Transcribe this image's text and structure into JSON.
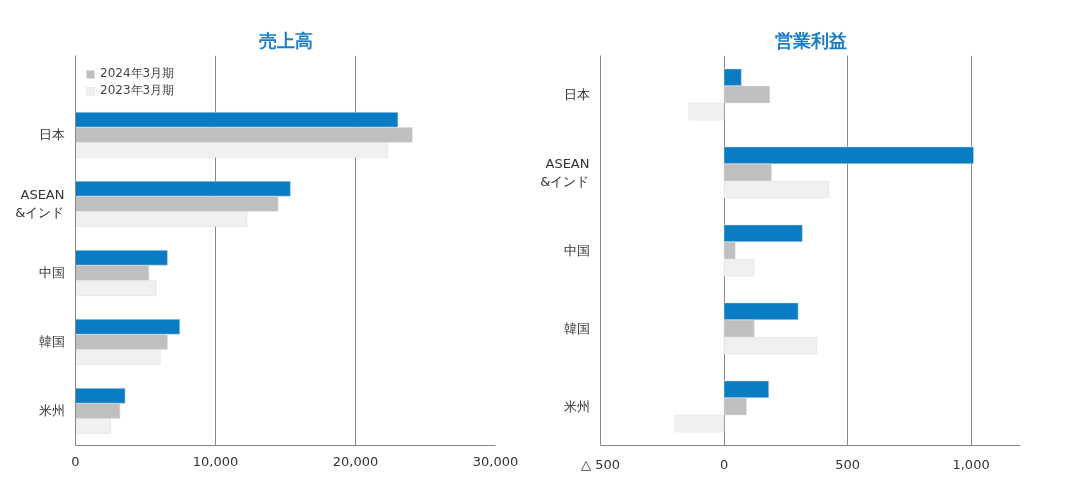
{
  "chart_data": [
    {
      "type": "bar",
      "orientation": "horizontal",
      "title": "売上高",
      "categories": [
        "日本",
        "ASEAN\n&インド",
        "中国",
        "韓国",
        "米州"
      ],
      "series": [
        {
          "color": "#0a7cc4",
          "values": [
            23030,
            15350,
            6570,
            7450,
            3540
          ]
        },
        {
          "name": "2024年3月期",
          "color": "#bfbfbf",
          "values": [
            24060,
            14470,
            5240,
            6570,
            3170
          ]
        },
        {
          "name": "2023年3月期",
          "color": "#f0f0f0",
          "values": [
            22290,
            12250,
            5760,
            6050,
            2510
          ]
        }
      ],
      "xlim": [
        0,
        30000
      ],
      "xticks": [
        0,
        {
          "value": 10000,
          "label": "10,000"
        },
        {
          "value": 20000,
          "label": "20,000"
        },
        {
          "value": 30000,
          "label": "30,000"
        }
      ],
      "grid": "x",
      "legend": "top left"
    },
    {
      "type": "bar",
      "orientation": "horizontal",
      "title": "営業利益",
      "categories": [
        "日本",
        "ASEAN\n&インド",
        "中国",
        "韓国",
        "米州"
      ],
      "series": [
        {
          "color": "#0a7cc4",
          "values": [
            70,
            1010,
            317,
            300,
            181
          ]
        },
        {
          "color": "#bfbfbf",
          "values": [
            185,
            192,
            45,
            122,
            91
          ]
        },
        {
          "color": "#f0f0f0",
          "values": [
            -143,
            425,
            122,
            376,
            -199
          ]
        }
      ],
      "xlim": [
        -500,
        1200
      ],
      "xticks": [
        {
          "value": -500,
          "label": "△ 500"
        },
        0,
        500,
        {
          "value": 1000,
          "label": "1,000"
        }
      ],
      "grid": "x"
    }
  ]
}
